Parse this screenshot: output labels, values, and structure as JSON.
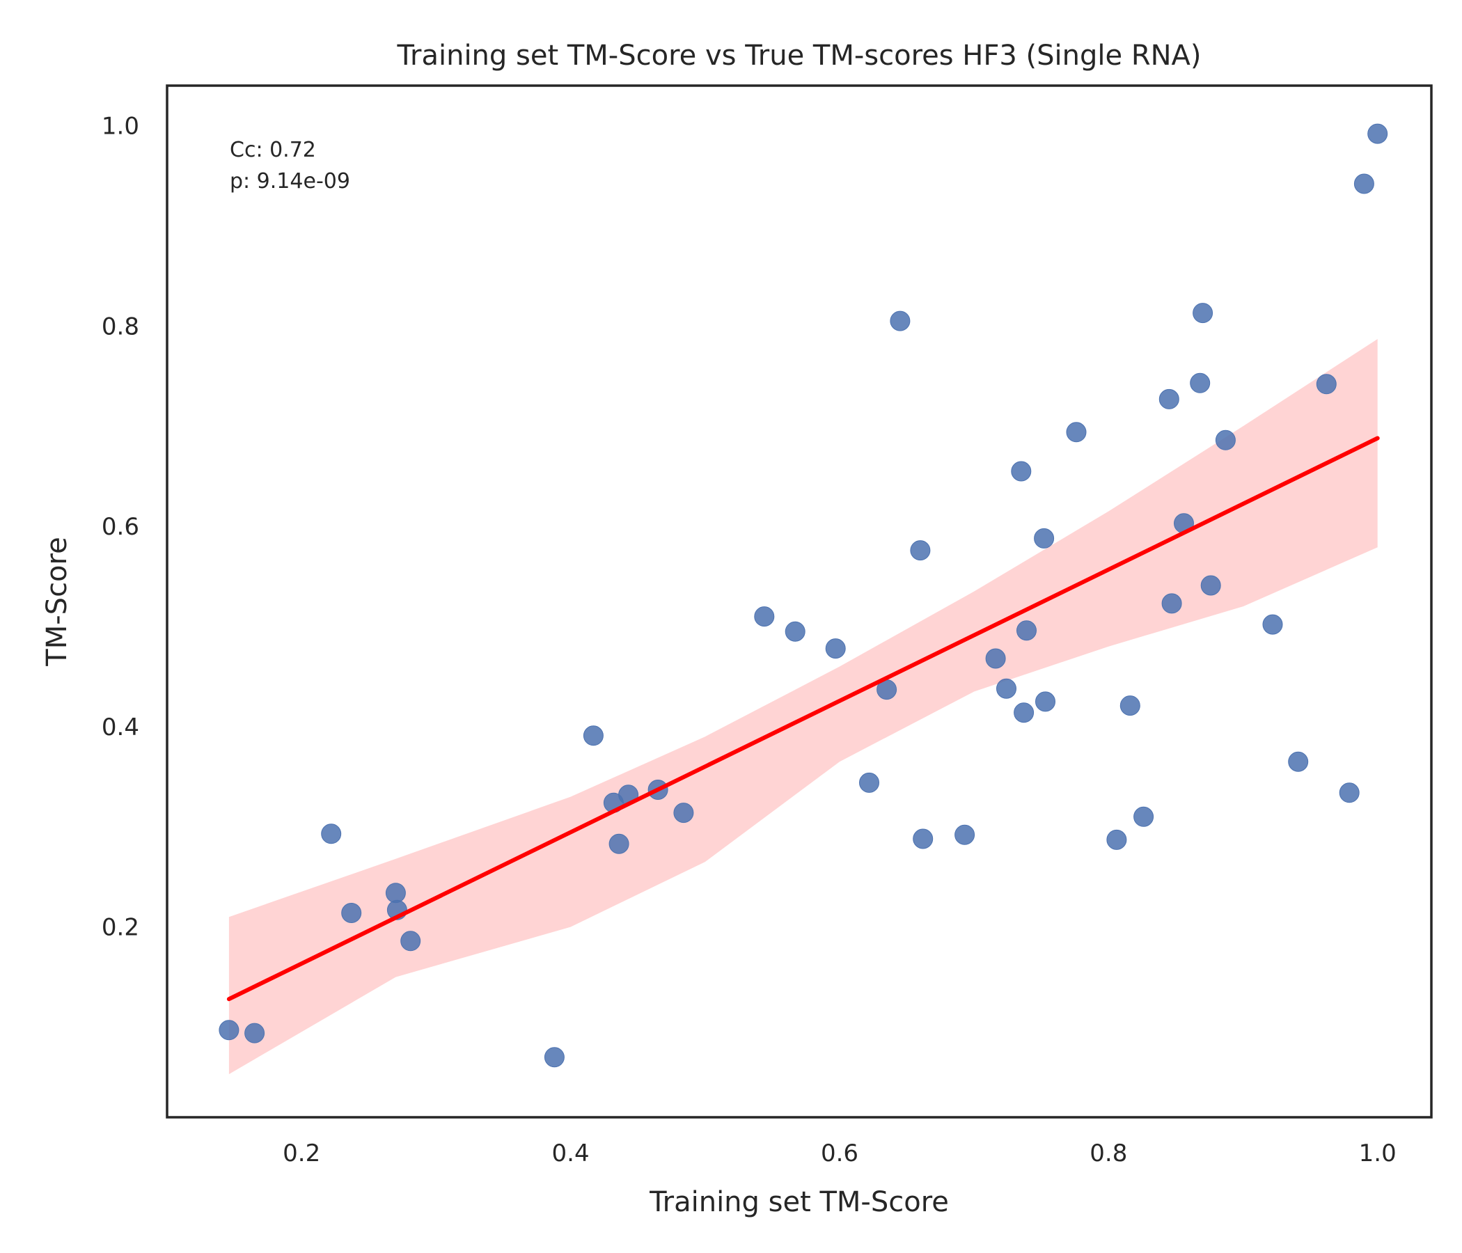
{
  "chart_data": {
    "type": "scatter",
    "title": "Training set TM-Score vs True TM-scores HF3 (Single RNA)",
    "xlabel": "Training set TM-Score",
    "ylabel": "TM-Score",
    "xlim": [
      0.1,
      1.04
    ],
    "ylim": [
      0.01,
      1.04
    ],
    "xticks": [
      0.2,
      0.4,
      0.6,
      0.8,
      1.0
    ],
    "yticks": [
      0.2,
      0.4,
      0.6,
      0.8,
      1.0
    ],
    "xtick_labels": [
      "0.2",
      "0.4",
      "0.6",
      "0.8",
      "1.0"
    ],
    "ytick_labels": [
      "0.2",
      "0.4",
      "0.6",
      "0.8",
      "1.0"
    ],
    "grid": false,
    "annotation": {
      "line1": "Cc: 0.72",
      "line2": "p: 9.14e-09"
    },
    "colors": {
      "points": "#4c72b0",
      "fit_line": "#ff0000",
      "ci_band": "#ffcccc"
    },
    "points": [
      [
        0.146,
        0.097
      ],
      [
        0.165,
        0.094
      ],
      [
        0.222,
        0.293
      ],
      [
        0.237,
        0.214
      ],
      [
        0.27,
        0.234
      ],
      [
        0.271,
        0.217
      ],
      [
        0.281,
        0.186
      ],
      [
        0.388,
        0.07
      ],
      [
        0.417,
        0.391
      ],
      [
        0.432,
        0.324
      ],
      [
        0.436,
        0.283
      ],
      [
        0.443,
        0.332
      ],
      [
        0.465,
        0.337
      ],
      [
        0.484,
        0.314
      ],
      [
        0.544,
        0.51
      ],
      [
        0.567,
        0.495
      ],
      [
        0.597,
        0.478
      ],
      [
        0.622,
        0.344
      ],
      [
        0.635,
        0.437
      ],
      [
        0.645,
        0.805
      ],
      [
        0.66,
        0.576
      ],
      [
        0.662,
        0.288
      ],
      [
        0.693,
        0.292
      ],
      [
        0.716,
        0.468
      ],
      [
        0.724,
        0.438
      ],
      [
        0.735,
        0.655
      ],
      [
        0.737,
        0.414
      ],
      [
        0.739,
        0.496
      ],
      [
        0.752,
        0.588
      ],
      [
        0.753,
        0.425
      ],
      [
        0.776,
        0.694
      ],
      [
        0.806,
        0.287
      ],
      [
        0.816,
        0.421
      ],
      [
        0.826,
        0.31
      ],
      [
        0.845,
        0.727
      ],
      [
        0.847,
        0.523
      ],
      [
        0.856,
        0.603
      ],
      [
        0.868,
        0.743
      ],
      [
        0.87,
        0.813
      ],
      [
        0.876,
        0.541
      ],
      [
        0.887,
        0.686
      ],
      [
        0.922,
        0.502
      ],
      [
        0.941,
        0.365
      ],
      [
        0.962,
        0.742
      ],
      [
        0.979,
        0.334
      ],
      [
        0.99,
        0.942
      ],
      [
        1.0,
        0.992
      ]
    ],
    "fit_line": [
      [
        0.146,
        0.128
      ],
      [
        1.0,
        0.688
      ]
    ],
    "ci_upper": [
      [
        0.146,
        0.21
      ],
      [
        0.27,
        0.268
      ],
      [
        0.4,
        0.33
      ],
      [
        0.5,
        0.39
      ],
      [
        0.6,
        0.46
      ],
      [
        0.7,
        0.535
      ],
      [
        0.8,
        0.615
      ],
      [
        0.9,
        0.7
      ],
      [
        1.0,
        0.787
      ]
    ],
    "ci_lower": [
      [
        1.0,
        0.579
      ],
      [
        0.9,
        0.52
      ],
      [
        0.8,
        0.48
      ],
      [
        0.7,
        0.435
      ],
      [
        0.6,
        0.365
      ],
      [
        0.5,
        0.265
      ],
      [
        0.4,
        0.2
      ],
      [
        0.27,
        0.15
      ],
      [
        0.146,
        0.053
      ]
    ]
  }
}
